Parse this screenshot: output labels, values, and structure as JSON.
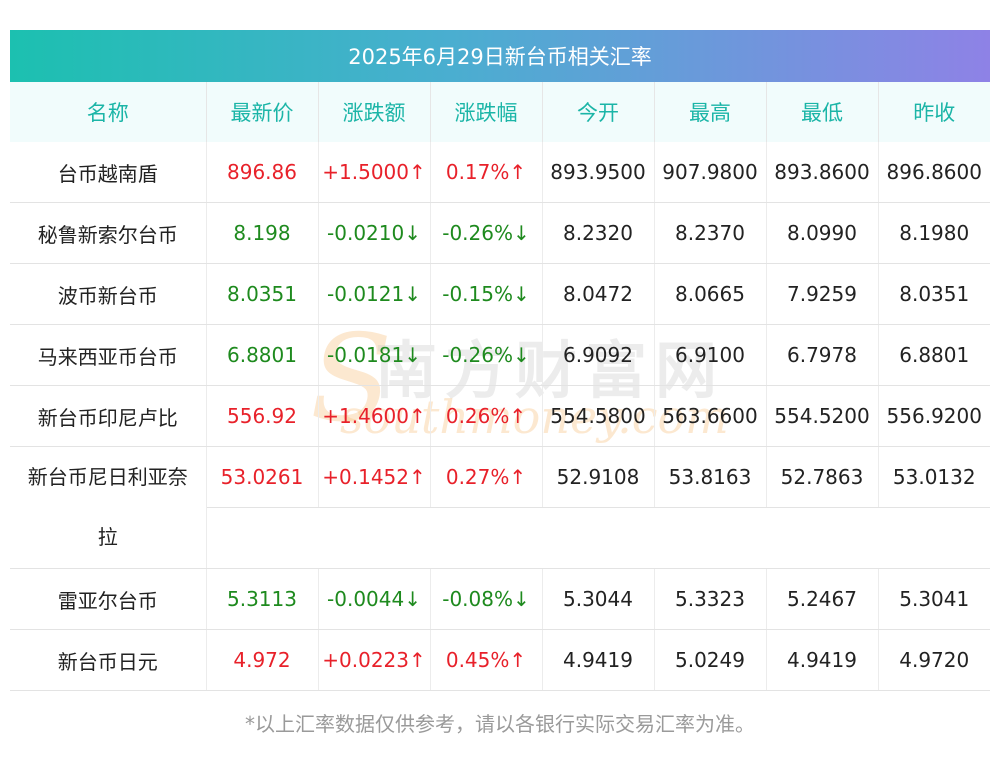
{
  "title": "2025年6月29日新台币相关汇率",
  "columns": [
    "名称",
    "最新价",
    "涨跌额",
    "涨跌幅",
    "今开",
    "最高",
    "最低",
    "昨收"
  ],
  "rows": [
    {
      "name": "台币越南盾",
      "latest": "896.86",
      "change": "+1.5000↑",
      "pct": "0.17%↑",
      "open": "893.9500",
      "high": "907.9800",
      "low": "893.8600",
      "prev": "896.8600",
      "dir": "up"
    },
    {
      "name": "秘鲁新索尔台币",
      "latest": "8.198",
      "change": "-0.0210↓",
      "pct": "-0.26%↓",
      "open": "8.2320",
      "high": "8.2370",
      "low": "8.0990",
      "prev": "8.1980",
      "dir": "down"
    },
    {
      "name": "波币新台币",
      "latest": "8.0351",
      "change": "-0.0121↓",
      "pct": "-0.15%↓",
      "open": "8.0472",
      "high": "8.0665",
      "low": "7.9259",
      "prev": "8.0351",
      "dir": "down"
    },
    {
      "name": "马来西亚币台币",
      "latest": "6.8801",
      "change": "-0.0181↓",
      "pct": "-0.26%↓",
      "open": "6.9092",
      "high": "6.9100",
      "low": "6.7978",
      "prev": "6.8801",
      "dir": "down"
    },
    {
      "name": "新台币印尼卢比",
      "latest": "556.92",
      "change": "+1.4600↑",
      "pct": "0.26%↑",
      "open": "554.5800",
      "high": "563.6600",
      "low": "554.5200",
      "prev": "556.9200",
      "dir": "up"
    },
    {
      "name": "新台币尼日利亚奈",
      "name_cont": "拉",
      "latest": "53.0261",
      "change": "+0.1452↑",
      "pct": "0.27%↑",
      "open": "52.9108",
      "high": "53.8163",
      "low": "52.7863",
      "prev": "53.0132",
      "dir": "up"
    },
    {
      "name": "雷亚尔台币",
      "latest": "5.3113",
      "change": "-0.0044↓",
      "pct": "-0.08%↓",
      "open": "5.3044",
      "high": "5.3323",
      "low": "5.2467",
      "prev": "5.3041",
      "dir": "down"
    },
    {
      "name": "新台币日元",
      "latest": "4.972",
      "change": "+0.0223↑",
      "pct": "0.45%↑",
      "open": "4.9419",
      "high": "5.0249",
      "low": "4.9419",
      "prev": "4.9720",
      "dir": "up"
    }
  ],
  "watermark": {
    "cn": "南方财富网",
    "en": "southmoney.com",
    "s": "S"
  },
  "footer": "*以上汇率数据仅供参考，请以各银行实际交易汇率为准。"
}
